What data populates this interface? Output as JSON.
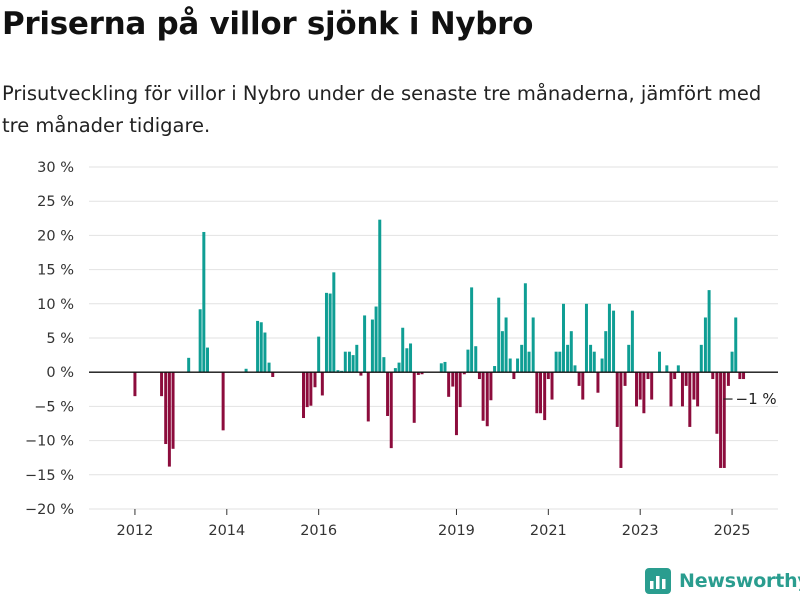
{
  "title": "Priserna på villor sjönk i Nybro",
  "subtitle": "Prisutveckling för villor i Nybro under de senaste tre månaderna, jämfört med tre månader tidigare.",
  "brand": "Newsworthy",
  "colors": {
    "positive": "#0f9e94",
    "negative": "#8c0c3c",
    "grid": "#e2e2e2",
    "zero": "#111111",
    "brand": "#2a9d8f"
  },
  "chart_data": {
    "type": "bar",
    "unit": "%",
    "ylim": [
      -20,
      30
    ],
    "y_ticks": [
      30,
      25,
      20,
      15,
      10,
      5,
      0,
      -5,
      -10,
      -15,
      -20
    ],
    "y_tick_labels": [
      "30 %",
      "25 %",
      "20 %",
      "15 %",
      "10 %",
      "5 %",
      "0 %",
      "−5 %",
      "−10 %",
      "−15 %",
      "−20 %"
    ],
    "x_ticks": [
      2012,
      2014,
      2016,
      2019,
      2021,
      2023,
      2025
    ],
    "x_range": [
      2011.0,
      2026.0
    ],
    "grid": "horizontal",
    "annotation": {
      "text": "−1 %",
      "x": 2025.25,
      "value": -1
    },
    "x": [
      2012.0,
      2012.58,
      2012.67,
      2012.75,
      2012.83,
      2013.17,
      2013.42,
      2013.5,
      2013.58,
      2013.92,
      2014.42,
      2014.67,
      2014.75,
      2014.83,
      2014.92,
      2015.0,
      2015.67,
      2015.75,
      2015.83,
      2015.92,
      2016.0,
      2016.08,
      2016.17,
      2016.25,
      2016.33,
      2016.42,
      2016.5,
      2016.58,
      2016.67,
      2016.75,
      2016.83,
      2016.92,
      2017.0,
      2017.08,
      2017.17,
      2017.25,
      2017.33,
      2017.42,
      2017.5,
      2017.58,
      2017.67,
      2017.75,
      2017.83,
      2017.92,
      2018.0,
      2018.08,
      2018.17,
      2018.25,
      2018.67,
      2018.75,
      2018.83,
      2018.92,
      2019.0,
      2019.08,
      2019.17,
      2019.25,
      2019.33,
      2019.42,
      2019.5,
      2019.58,
      2019.67,
      2019.75,
      2019.83,
      2019.92,
      2020.0,
      2020.08,
      2020.17,
      2020.25,
      2020.33,
      2020.42,
      2020.5,
      2020.58,
      2020.67,
      2020.75,
      2020.83,
      2020.92,
      2021.0,
      2021.08,
      2021.17,
      2021.25,
      2021.33,
      2021.42,
      2021.5,
      2021.58,
      2021.67,
      2021.75,
      2021.83,
      2021.92,
      2022.0,
      2022.08,
      2022.17,
      2022.25,
      2022.33,
      2022.42,
      2022.5,
      2022.58,
      2022.67,
      2022.75,
      2022.83,
      2022.92,
      2023.0,
      2023.08,
      2023.17,
      2023.25,
      2023.42,
      2023.58,
      2023.67,
      2023.75,
      2023.83,
      2023.92,
      2024.0,
      2024.08,
      2024.17,
      2024.25,
      2024.33,
      2024.42,
      2024.5,
      2024.58,
      2024.67,
      2024.75,
      2024.83,
      2024.92,
      2025.0,
      2025.08,
      2025.17,
      2025.25
    ],
    "values": [
      -3.5,
      -3.5,
      -10.5,
      -13.8,
      -11.2,
      2.1,
      9.2,
      20.5,
      3.6,
      -8.5,
      0.5,
      7.5,
      7.3,
      5.8,
      1.4,
      -0.7,
      -6.7,
      -5.1,
      -4.9,
      -2.2,
      5.2,
      -3.4,
      11.6,
      11.5,
      14.6,
      0.3,
      0.2,
      3.0,
      3.0,
      2.5,
      4.0,
      -0.5,
      8.3,
      -7.2,
      7.7,
      9.6,
      22.3,
      2.2,
      -6.4,
      -11.1,
      0.6,
      1.4,
      6.5,
      3.5,
      4.2,
      -7.4,
      -0.4,
      -0.3,
      1.3,
      1.5,
      -3.6,
      -2.1,
      -9.2,
      -5.1,
      -0.3,
      3.3,
      12.4,
      3.8,
      -1.0,
      -7.1,
      -7.9,
      -4.1,
      0.9,
      10.9,
      6.0,
      8.0,
      2.0,
      -1.0,
      2.0,
      4.0,
      13.0,
      3.0,
      8.0,
      -6.0,
      -6.0,
      -7.0,
      -1.0,
      -4.0,
      3.0,
      3.0,
      10.0,
      4.0,
      6.0,
      1.0,
      -2.0,
      -4.0,
      10.0,
      4.0,
      3.0,
      -3.0,
      2.0,
      6.0,
      10.0,
      9.0,
      -8.0,
      -14.0,
      -2.0,
      4.0,
      9.0,
      -5.0,
      -4.0,
      -6.0,
      -1.0,
      -4.0,
      3.0,
      1.0,
      -5.0,
      -1.0,
      1.0,
      -5.0,
      -2.0,
      -8.0,
      -4.0,
      -5.0,
      4.0,
      8.0,
      12.0,
      -1.0,
      -9.0,
      -14.0,
      -14.0,
      -2.0,
      3.0,
      8.0,
      -1.0,
      -1.0
    ]
  }
}
